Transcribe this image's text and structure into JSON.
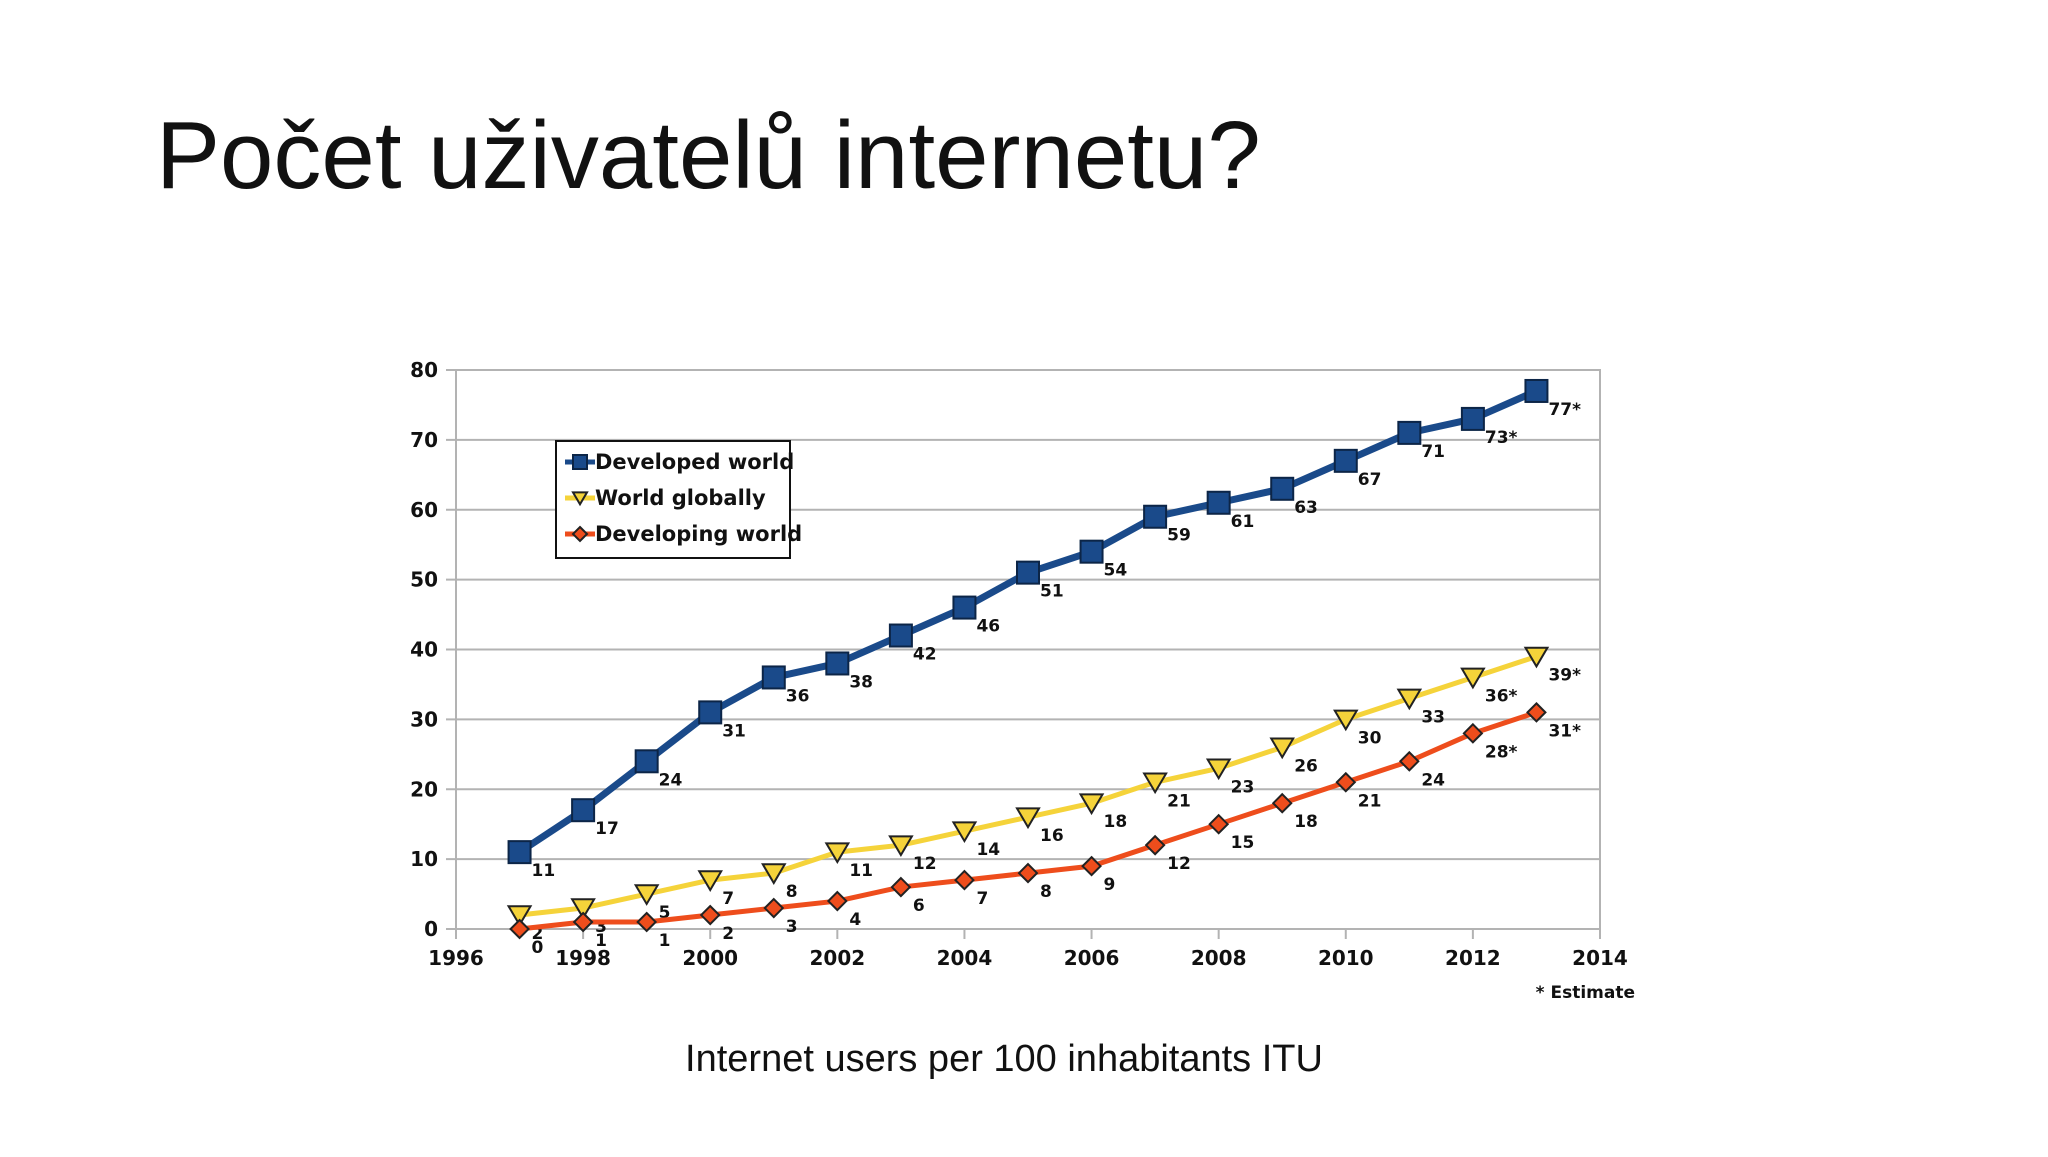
{
  "slide": {
    "title": "Počet uživatelů internetu?",
    "caption": "Internet users per 100 inhabitants ITU"
  },
  "chart_data": {
    "type": "line",
    "xlim": [
      1996,
      2014
    ],
    "ylim": [
      0,
      80
    ],
    "x_ticks": [
      1996,
      1998,
      2000,
      2002,
      2004,
      2006,
      2008,
      2010,
      2012,
      2014
    ],
    "y_ticks": [
      0,
      10,
      20,
      30,
      40,
      50,
      60,
      70,
      80
    ],
    "grid": "horizontal",
    "legend_position": "top-left",
    "footnote": "* Estimate",
    "x": [
      1997,
      1998,
      1999,
      2000,
      2001,
      2002,
      2003,
      2004,
      2005,
      2006,
      2007,
      2008,
      2009,
      2010,
      2011,
      2012,
      2013
    ],
    "series": [
      {
        "name": "Developed world",
        "color": "#1a4a8a",
        "marker": "square",
        "values": [
          11,
          17,
          24,
          31,
          36,
          38,
          42,
          46,
          51,
          54,
          59,
          61,
          63,
          67,
          71,
          73,
          77
        ],
        "labels": [
          "11",
          "17",
          "24",
          "31",
          "36",
          "38",
          "42",
          "46",
          "51",
          "54",
          "59",
          "61",
          "63",
          "67",
          "71",
          "73*",
          "77*"
        ]
      },
      {
        "name": "World globally",
        "color": "#f5d33a",
        "marker": "triangle-down",
        "values": [
          2,
          3,
          5,
          7,
          8,
          11,
          12,
          14,
          16,
          18,
          21,
          23,
          26,
          30,
          33,
          36,
          39
        ],
        "labels": [
          "2",
          "3",
          "5",
          "7",
          "8",
          "11",
          "12",
          "14",
          "16",
          "18",
          "21",
          "23",
          "26",
          "30",
          "33",
          "36*",
          "39*"
        ]
      },
      {
        "name": "Developing world",
        "color": "#ee4d1c",
        "marker": "diamond",
        "values": [
          0,
          1,
          1,
          2,
          3,
          4,
          6,
          7,
          8,
          9,
          12,
          15,
          18,
          21,
          24,
          28,
          31
        ],
        "labels": [
          "0",
          "1",
          "1",
          "2",
          "3",
          "4",
          "6",
          "7",
          "8",
          "9",
          "12",
          "15",
          "18",
          "21",
          "24",
          "28*",
          "31*"
        ]
      }
    ]
  }
}
